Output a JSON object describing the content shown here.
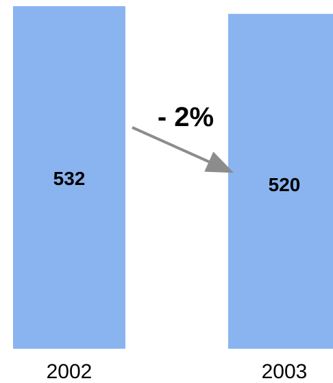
{
  "chart_data": {
    "type": "bar",
    "categories": [
      "2002",
      "2003"
    ],
    "values": [
      532,
      520
    ],
    "bar_value_labels": [
      "532",
      "520"
    ],
    "annotation": {
      "text": "- 2%",
      "type": "arrow",
      "from_category": "2002",
      "to_category": "2003"
    },
    "title": "",
    "xlabel": "",
    "ylabel": "",
    "grid": false,
    "colors": {
      "bar": "#8ab4f0",
      "arrow": "#8c8c8c",
      "text": "#000000"
    }
  }
}
